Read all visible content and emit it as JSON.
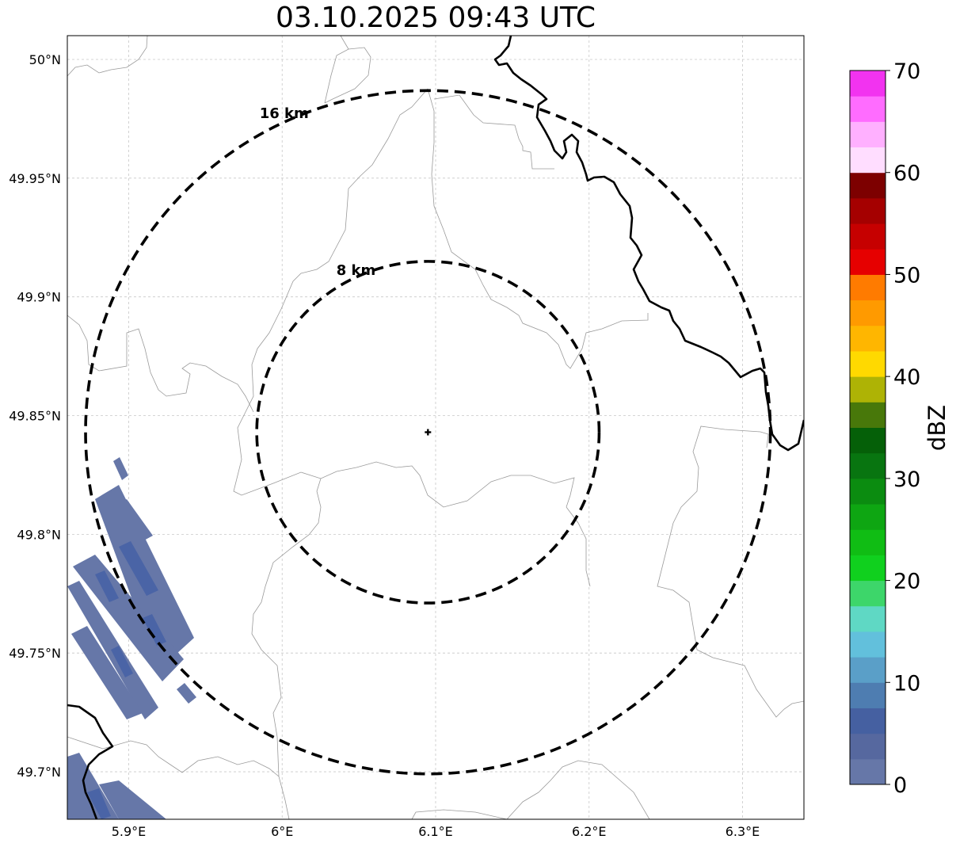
{
  "title": "03.10.2025 09:43 UTC",
  "map": {
    "extent": {
      "lon_min": 5.86,
      "lon_max": 6.34,
      "lat_min": 49.68,
      "lat_max": 50.01
    },
    "lat_ticks": [
      {
        "value": 50.0,
        "label": "50°N"
      },
      {
        "value": 49.95,
        "label": "49.95°N"
      },
      {
        "value": 49.9,
        "label": "49.9°N"
      },
      {
        "value": 49.85,
        "label": "49.85°N"
      },
      {
        "value": 49.8,
        "label": "49.8°N"
      },
      {
        "value": 49.75,
        "label": "49.75°N"
      },
      {
        "value": 49.7,
        "label": "49.7°N"
      }
    ],
    "lon_ticks": [
      {
        "value": 5.9,
        "label": "5.9°E"
      },
      {
        "value": 6.0,
        "label": "6°E"
      },
      {
        "value": 6.1,
        "label": "6.1°E"
      },
      {
        "value": 6.2,
        "label": "6.2°E"
      },
      {
        "value": 6.3,
        "label": "6.3°E"
      }
    ],
    "grid": true,
    "radar_site": {
      "lon": 6.095,
      "lat": 49.843
    },
    "range_rings": [
      {
        "km": 8,
        "label": "8 km"
      },
      {
        "km": 16,
        "label": "16 km"
      }
    ],
    "colors": {
      "ring": "#000000",
      "border": "#000000",
      "admin": "#9a9a9a",
      "grid": "#c8c8c8"
    }
  },
  "colorbar": {
    "label": "dBZ",
    "min": 0,
    "max": 70,
    "ticks": [
      0,
      10,
      20,
      30,
      40,
      50,
      60,
      70
    ],
    "colors": [
      "#6677a8",
      "#56689f",
      "#4560a1",
      "#4e7db1",
      "#5a9fc8",
      "#62c0dc",
      "#5fd8c4",
      "#3dd66a",
      "#10d01e",
      "#10bd14",
      "#0ea612",
      "#0b8c10",
      "#087510",
      "#056008",
      "#48780a",
      "#aeb305",
      "#ffd900",
      "#ffb600",
      "#ff9a00",
      "#ff7b00",
      "#e60000",
      "#c60000",
      "#a50000",
      "#7d0000",
      "#ffddff",
      "#ffb0ff",
      "#ff6cff",
      "#f233f0"
    ]
  }
}
